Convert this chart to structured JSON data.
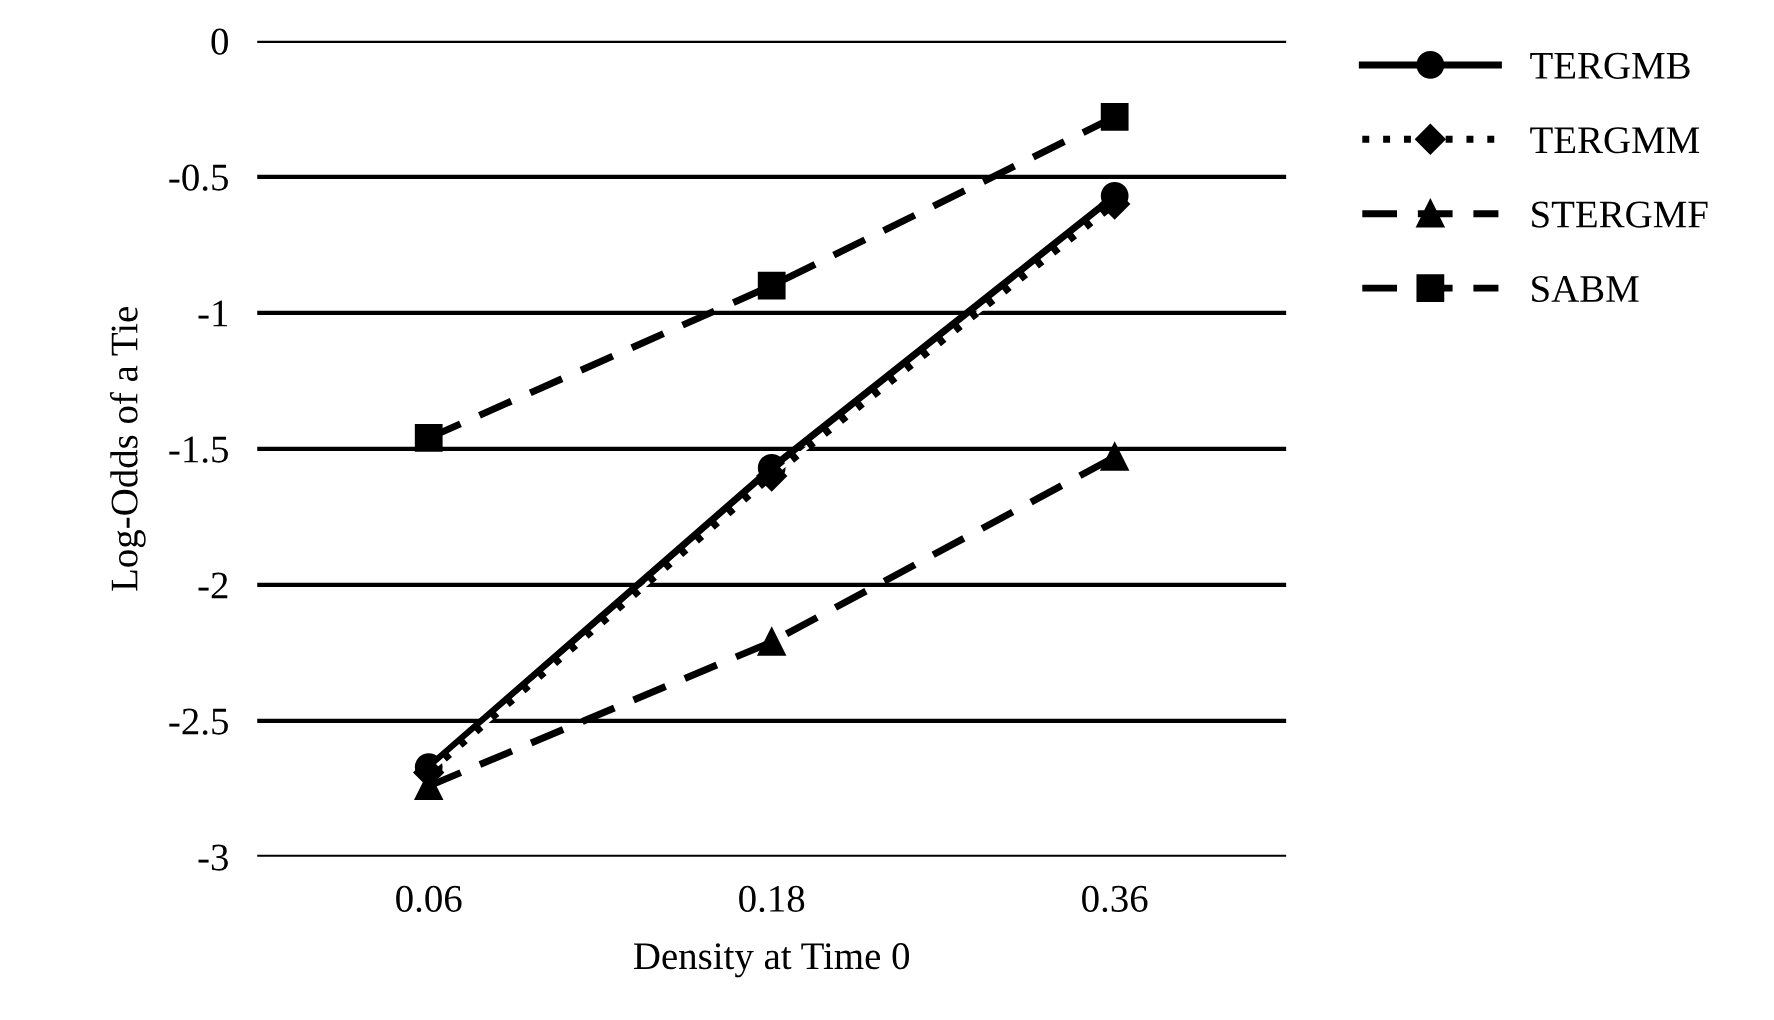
{
  "chart_data": {
    "type": "line",
    "xlabel": "Density at Time 0",
    "ylabel": "Log-Odds of a Tie",
    "categories": [
      "0.06",
      "0.18",
      "0.36"
    ],
    "series": [
      {
        "name": "TERGMB",
        "color": "#000000",
        "values": [
          -2.67,
          -1.57,
          -0.57
        ],
        "marker": "circle",
        "line_style": "solid"
      },
      {
        "name": "TERGMM",
        "color": "#000000",
        "values": [
          -2.69,
          -1.6,
          -0.6
        ],
        "marker": "diamond",
        "line_style": "dotted"
      },
      {
        "name": "STERGMF",
        "color": "#000000",
        "values": [
          -2.74,
          -2.21,
          -1.53
        ],
        "marker": "triangle",
        "line_style": "dashed"
      },
      {
        "name": "SABM",
        "color": "#000000",
        "values": [
          -1.46,
          -0.9,
          -0.28
        ],
        "marker": "square",
        "line_style": "dashed"
      }
    ],
    "ylim": [
      -3,
      0
    ],
    "yticks": [
      -3,
      -2.5,
      -2,
      -1.5,
      -1,
      -0.5,
      0
    ],
    "grid": "y",
    "legend": "top right"
  }
}
